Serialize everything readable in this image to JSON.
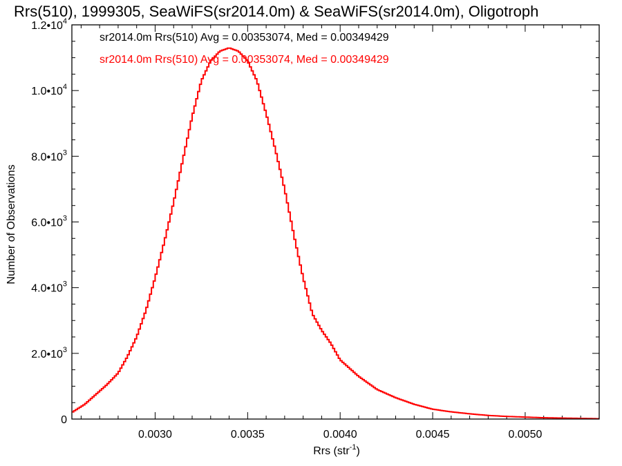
{
  "chart_data": {
    "type": "line",
    "title": "Rrs(510), 1999305, SeaWiFS(sr2014.0m) & SeaWiFS(sr2014.0m), Oligotroph",
    "xlabel": "Rrs (str",
    "xlabel_superscript": "-1",
    "xlabel_suffix": ")",
    "ylabel": "Number of Observations",
    "xlim": [
      0.00255,
      0.0054
    ],
    "ylim": [
      0,
      12000
    ],
    "x_ticks": [
      {
        "value": 0.003,
        "label": "0.0030"
      },
      {
        "value": 0.0035,
        "label": "0.0035"
      },
      {
        "value": 0.004,
        "label": "0.0040"
      },
      {
        "value": 0.0045,
        "label": "0.0045"
      },
      {
        "value": 0.005,
        "label": "0.0050"
      }
    ],
    "y_ticks": [
      {
        "value": 0,
        "mantissa": "0",
        "exponent": ""
      },
      {
        "value": 2000,
        "mantissa": "2.0•10",
        "exponent": "3"
      },
      {
        "value": 4000,
        "mantissa": "4.0•10",
        "exponent": "3"
      },
      {
        "value": 6000,
        "mantissa": "6.0•10",
        "exponent": "3"
      },
      {
        "value": 8000,
        "mantissa": "8.0•10",
        "exponent": "3"
      },
      {
        "value": 10000,
        "mantissa": "1.0•10",
        "exponent": "4"
      },
      {
        "value": 12000,
        "mantissa": "1.2•10",
        "exponent": "4"
      }
    ],
    "legend": [
      {
        "text": "sr2014.0m Rrs(510) Avg = 0.00353074, Med = 0.00349429",
        "color": "#000000"
      },
      {
        "text": "sr2014.0m Rrs(510) Avg = 0.00353074, Med = 0.00349429",
        "color": "#ff0000"
      }
    ],
    "legend_placement": "top-left",
    "grid": false,
    "series": [
      {
        "color": "#ff0000",
        "x": [
          0.00255,
          0.00262,
          0.00268,
          0.00274,
          0.0028,
          0.00285,
          0.0029,
          0.00295,
          0.003,
          0.00305,
          0.0031,
          0.00315,
          0.0032,
          0.00325,
          0.0033,
          0.00335,
          0.0034,
          0.00345,
          0.0035,
          0.00355,
          0.0036,
          0.00365,
          0.0037,
          0.00375,
          0.0038,
          0.00385,
          0.0039,
          0.00395,
          0.004,
          0.0041,
          0.0042,
          0.0043,
          0.0044,
          0.0045,
          0.0046,
          0.0047,
          0.0048,
          0.0049,
          0.005,
          0.0051,
          0.0052,
          0.0053,
          0.0054
        ],
        "y": [
          200,
          450,
          750,
          1050,
          1400,
          1900,
          2500,
          3300,
          4300,
          5400,
          6600,
          7900,
          9200,
          10300,
          10900,
          11200,
          11300,
          11200,
          10900,
          10300,
          9300,
          8200,
          7000,
          5600,
          4300,
          3200,
          2700,
          2300,
          1800,
          1300,
          900,
          650,
          450,
          300,
          220,
          160,
          110,
          80,
          60,
          40,
          30,
          20,
          10
        ]
      }
    ]
  }
}
